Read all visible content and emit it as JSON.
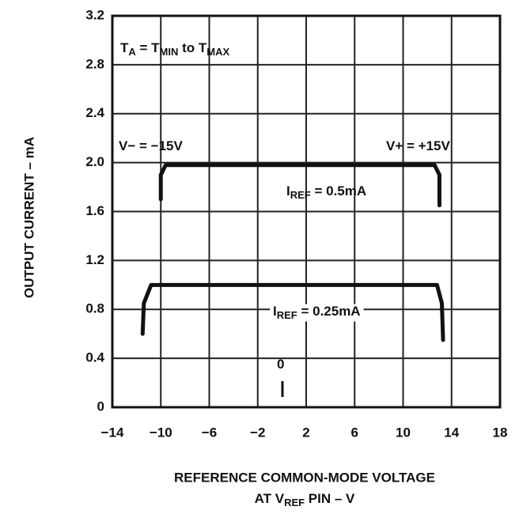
{
  "chart_data": {
    "type": "line",
    "x_label": "REFERENCE COMMON-MODE VOLTAGE",
    "x_label_line2": [
      "AT V",
      "REF",
      " PIN – V"
    ],
    "y_label": "OUTPUT CURRENT – mA",
    "xlim": [
      -14,
      18
    ],
    "xticks": [
      {
        "value": -14,
        "label": "−14"
      },
      {
        "value": -10,
        "label": "−10"
      },
      {
        "value": -6,
        "label": "−6"
      },
      {
        "value": -2,
        "label": "−2"
      },
      2,
      6,
      10,
      14,
      18
    ],
    "ylim": [
      0,
      3.2
    ],
    "yticks": [
      0,
      0.4,
      0.8,
      1.2,
      1.6,
      {
        "value": 2,
        "label": "2.0"
      },
      2.4,
      2.8,
      3.2
    ],
    "grid": true,
    "series": [
      {
        "name": [
          "I",
          "REF",
          " = 0.5mA"
        ],
        "color": "#111111",
        "x": [
          -10,
          -10,
          -9.6,
          12.6,
          13,
          13
        ],
        "values": [
          1.7,
          1.9,
          1.98,
          1.98,
          1.9,
          1.65
        ]
      },
      {
        "name": [
          "I",
          "REF",
          " = 0.25mA"
        ],
        "color": "#111111",
        "x": [
          -11.5,
          -11.4,
          -10.8,
          12.8,
          13.2,
          13.3
        ],
        "values": [
          0.6,
          0.85,
          1.0,
          1.0,
          0.85,
          0.55
        ]
      }
    ],
    "annotations": [
      [
        "T",
        "A",
        " = T",
        "MIN",
        " to T",
        "MAX"
      ],
      [
        "V− = −15V"
      ],
      [
        "V+ = +15V"
      ],
      [
        "0"
      ]
    ]
  }
}
